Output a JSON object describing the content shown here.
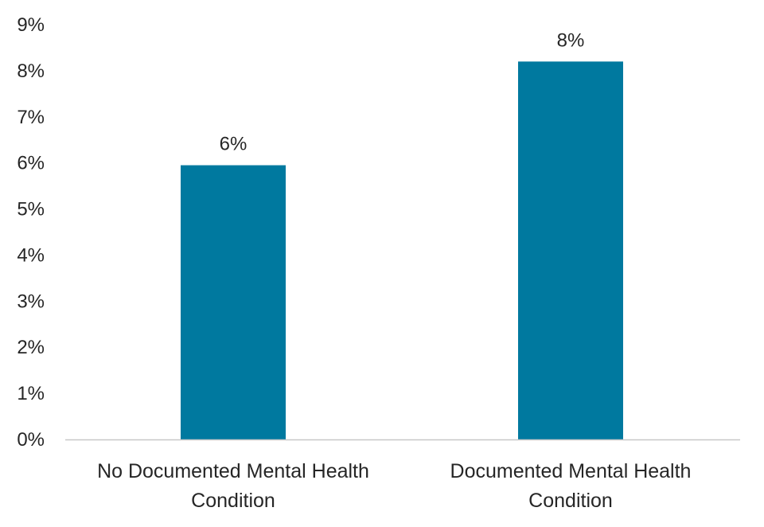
{
  "chart_data": {
    "type": "bar",
    "categories": [
      [
        "No Documented Mental Health",
        "Condition"
      ],
      [
        "Documented Mental Health",
        "Condition"
      ]
    ],
    "values": [
      5.95,
      8.2
    ],
    "data_labels": [
      "6%",
      "8%"
    ],
    "ylim": [
      0,
      9
    ],
    "yticks": [
      0,
      1,
      2,
      3,
      4,
      5,
      6,
      7,
      8,
      9
    ],
    "ytick_suffix": "%",
    "title": "",
    "xlabel": "",
    "ylabel": "",
    "grid": false,
    "legend": "none",
    "bar_color": "#00799f",
    "axis_color": "#c8c8c8",
    "text_color": "#262626"
  }
}
